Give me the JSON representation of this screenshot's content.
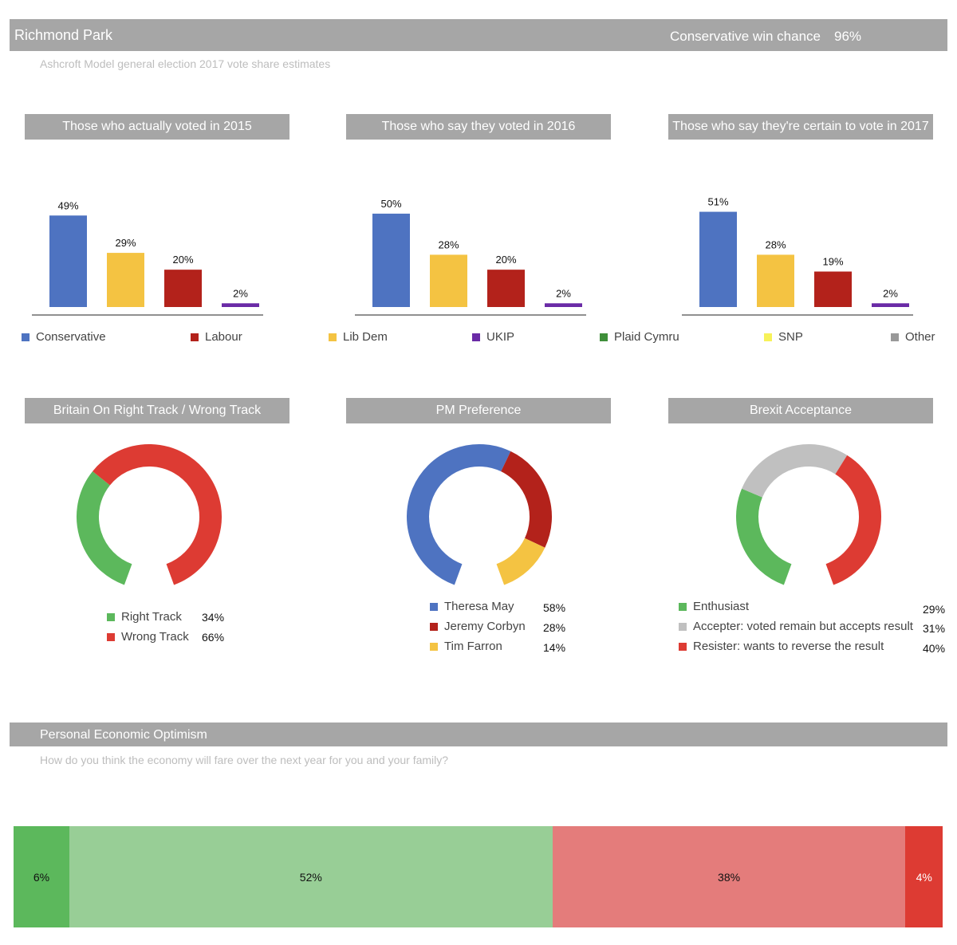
{
  "header": {
    "title": "Richmond Park",
    "win_chance_label": "Conservative win chance",
    "win_chance_value": "96%",
    "subtitle": "Ashcroft Model general election 2017 vote share estimates"
  },
  "legend": [
    {
      "label": "Conservative",
      "color": "#4e73c1"
    },
    {
      "label": "Labour",
      "color": "#b3221b"
    },
    {
      "label": "Lib Dem",
      "color": "#f4c342"
    },
    {
      "label": "UKIP",
      "color": "#6a2aa6"
    },
    {
      "label": "Plaid Cymru",
      "color": "#3f8f3a"
    },
    {
      "label": "SNP",
      "color": "#f7f259"
    },
    {
      "label": "Other",
      "color": "#999999"
    }
  ],
  "chart_data": [
    {
      "type": "bar",
      "title": "Those who actually voted in 2015",
      "categories": [
        "Conservative",
        "Lib Dem",
        "Labour",
        "UKIP"
      ],
      "values": [
        49,
        29,
        20,
        2
      ],
      "labels": [
        "49%",
        "29%",
        "20%",
        "2%"
      ],
      "colors": [
        "#4e73c1",
        "#f4c342",
        "#b3221b",
        "#6a2aa6"
      ],
      "ylim": [
        0,
        55
      ]
    },
    {
      "type": "bar",
      "title": "Those who say they voted in 2016",
      "categories": [
        "Conservative",
        "Lib Dem",
        "Labour",
        "UKIP"
      ],
      "values": [
        50,
        28,
        20,
        2
      ],
      "labels": [
        "50%",
        "28%",
        "20%",
        "2%"
      ],
      "colors": [
        "#4e73c1",
        "#f4c342",
        "#b3221b",
        "#6a2aa6"
      ],
      "ylim": [
        0,
        55
      ]
    },
    {
      "type": "bar",
      "title": "Those who say they're certain to vote in 2017",
      "categories": [
        "Conservative",
        "Lib Dem",
        "Labour",
        "UKIP"
      ],
      "values": [
        51,
        28,
        19,
        2
      ],
      "labels": [
        "51%",
        "28%",
        "19%",
        "2%"
      ],
      "colors": [
        "#4e73c1",
        "#f4c342",
        "#b3221b",
        "#6a2aa6"
      ],
      "ylim": [
        0,
        55
      ]
    },
    {
      "type": "pie",
      "title": "Britain On Right Track / Wrong Track",
      "series": [
        {
          "name": "Right Track",
          "value": 34,
          "label": "34%",
          "color": "#5cb85c"
        },
        {
          "name": "Wrong Track",
          "value": 66,
          "label": "66%",
          "color": "#dd3b33"
        }
      ]
    },
    {
      "type": "pie",
      "title": "PM Preference",
      "series": [
        {
          "name": "Theresa May",
          "value": 58,
          "label": "58%",
          "color": "#4e73c1"
        },
        {
          "name": "Jeremy Corbyn",
          "value": 28,
          "label": "28%",
          "color": "#b3221b"
        },
        {
          "name": "Tim Farron",
          "value": 14,
          "label": "14%",
          "color": "#f4c342"
        }
      ]
    },
    {
      "type": "pie",
      "title": "Brexit Acceptance",
      "series": [
        {
          "name": "Enthusiast",
          "value": 29,
          "label": "29%",
          "color": "#5cb85c"
        },
        {
          "name": "Accepter: voted remain but accepts result",
          "value": 31,
          "label": "31%",
          "color": "#c0c0c0"
        },
        {
          "name": "Resister: wants to reverse the result",
          "value": 40,
          "label": "40%",
          "color": "#dd3b33"
        }
      ]
    },
    {
      "type": "bar",
      "title": "Personal Economic Optimism",
      "subtitle": "How do you think the economy will fare over the next year for you and your family?",
      "stacked": true,
      "values": [
        6,
        52,
        38,
        4
      ],
      "labels": [
        "6%",
        "52%",
        "38%",
        "4%"
      ],
      "colors": [
        "#5cb85c",
        "#98ce96",
        "#e47c7b",
        "#dd3b33"
      ]
    }
  ]
}
